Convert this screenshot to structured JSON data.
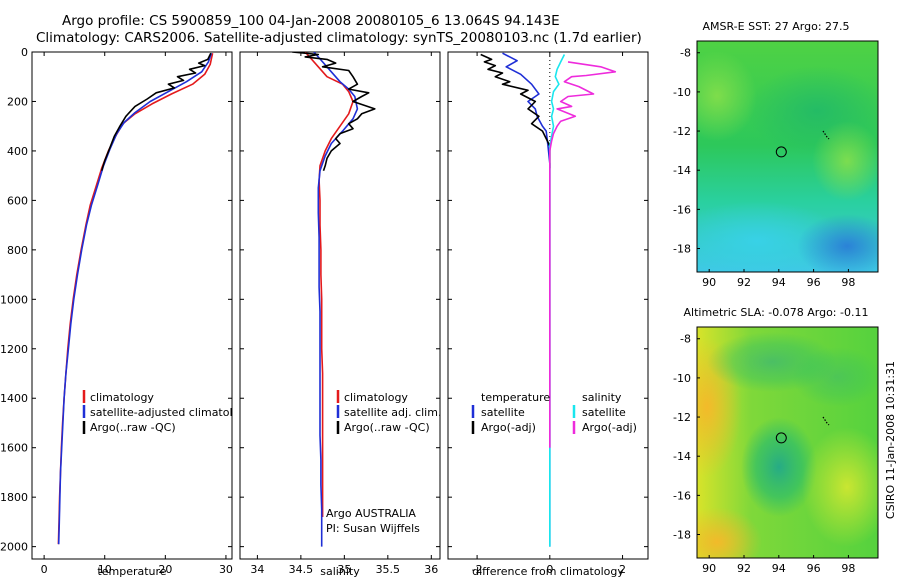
{
  "header": {
    "line1": "Argo profile: CS 5900859_100 04-Jan-2008 20080105_6 13.064S 94.143E",
    "line2": "Climatology: CARS2006. Satellite-adjusted climatology: synTS_20080103.nc (1.7d earlier)"
  },
  "colors": {
    "red": "#e41a1c",
    "blue": "#1f2fd6",
    "black": "#000000",
    "cyan": "#19e6ee",
    "magenta": "#ee2bdc"
  },
  "chart_data": [
    {
      "type": "line",
      "title": "",
      "xlabel": "temperature",
      "ylabel": "",
      "xlim": [
        -2,
        31
      ],
      "ylim": [
        2050,
        0
      ],
      "xticks": [
        0,
        10,
        20,
        30
      ],
      "yticks": [
        0,
        200,
        400,
        600,
        800,
        1000,
        1200,
        1400,
        1600,
        1800,
        2000
      ],
      "series": [
        {
          "name": "climatology",
          "color": "red",
          "points": [
            [
              27.8,
              5
            ],
            [
              27.4,
              50
            ],
            [
              26.5,
              90
            ],
            [
              24.5,
              130
            ],
            [
              21,
              170
            ],
            [
              17.8,
              210
            ],
            [
              15,
              250
            ],
            [
              13,
              290
            ],
            [
              11.8,
              340
            ],
            [
              10.6,
              400
            ],
            [
              9.5,
              470
            ],
            [
              8.5,
              550
            ],
            [
              7.6,
              620
            ],
            [
              6.9,
              700
            ],
            [
              6.1,
              800
            ],
            [
              5.4,
              900
            ],
            [
              4.8,
              1000
            ],
            [
              4.3,
              1100
            ],
            [
              3.9,
              1200
            ],
            [
              3.6,
              1300
            ],
            [
              3.3,
              1400
            ],
            [
              3.05,
              1500
            ],
            [
              2.85,
              1600
            ],
            [
              2.7,
              1700
            ],
            [
              2.55,
              1800
            ],
            [
              2.45,
              1900
            ],
            [
              2.35,
              1990
            ]
          ]
        },
        {
          "name": "satellite-adjusted climatology",
          "color": "blue",
          "points": [
            [
              27.6,
              5
            ],
            [
              27.1,
              40
            ],
            [
              26,
              80
            ],
            [
              23.5,
              120
            ],
            [
              20.5,
              160
            ],
            [
              17.5,
              200
            ],
            [
              15,
              245
            ],
            [
              13.2,
              285
            ],
            [
              12,
              330
            ],
            [
              10.9,
              390
            ],
            [
              9.8,
              460
            ],
            [
              8.8,
              540
            ],
            [
              7.8,
              620
            ],
            [
              7,
              700
            ],
            [
              6.2,
              800
            ],
            [
              5.5,
              900
            ],
            [
              4.9,
              1000
            ],
            [
              4.4,
              1100
            ],
            [
              4,
              1200
            ],
            [
              3.6,
              1300
            ],
            [
              3.3,
              1400
            ],
            [
              3.1,
              1500
            ],
            [
              2.9,
              1600
            ],
            [
              2.7,
              1700
            ],
            [
              2.6,
              1800
            ],
            [
              2.5,
              1900
            ],
            [
              2.4,
              1990
            ]
          ]
        },
        {
          "name": "Argo(..raw -QC)",
          "color": "black",
          "points": [
            [
              27.5,
              5
            ],
            [
              27,
              30
            ],
            [
              25.5,
              45
            ],
            [
              26.5,
              55
            ],
            [
              24,
              70
            ],
            [
              25,
              85
            ],
            [
              22,
              100
            ],
            [
              23,
              115
            ],
            [
              20.5,
              130
            ],
            [
              21.5,
              145
            ],
            [
              18.5,
              165
            ],
            [
              17,
              190
            ],
            [
              15,
              220
            ],
            [
              13.5,
              260
            ],
            [
              12.5,
              300
            ],
            [
              11.6,
              340
            ],
            [
              10.8,
              390
            ],
            [
              10,
              440
            ],
            [
              9.5,
              480
            ]
          ]
        }
      ],
      "legend": {
        "position": "bottom-right",
        "entries": [
          "climatology",
          "satellite-adjusted climatology",
          "Argo(..raw -QC)"
        ]
      }
    },
    {
      "type": "line",
      "title": "",
      "xlabel": "salinity",
      "ylabel": "",
      "xlim": [
        33.8,
        36.1
      ],
      "ylim": [
        2050,
        0
      ],
      "xticks": [
        34,
        34.5,
        35,
        35.5,
        36
      ],
      "series": [
        {
          "name": "climatology",
          "color": "red",
          "points": [
            [
              34.55,
              0
            ],
            [
              34.7,
              60
            ],
            [
              34.8,
              100
            ],
            [
              34.98,
              130
            ],
            [
              35.05,
              160
            ],
            [
              35.1,
              200
            ],
            [
              35.05,
              250
            ],
            [
              34.95,
              300
            ],
            [
              34.85,
              350
            ],
            [
              34.78,
              400
            ],
            [
              34.72,
              460
            ],
            [
              34.71,
              520
            ],
            [
              34.72,
              600
            ],
            [
              34.72,
              700
            ],
            [
              34.73,
              800
            ],
            [
              34.73,
              900
            ],
            [
              34.74,
              1000
            ],
            [
              34.74,
              1100
            ],
            [
              34.74,
              1200
            ],
            [
              34.75,
              1300
            ],
            [
              34.75,
              1400
            ],
            [
              34.75,
              1500
            ],
            [
              34.75,
              1600
            ],
            [
              34.75,
              1700
            ],
            [
              34.75,
              1800
            ],
            [
              34.75,
              1880
            ]
          ]
        },
        {
          "name": "satellite adj. clim.",
          "color": "blue",
          "points": [
            [
              34.65,
              0
            ],
            [
              34.75,
              40
            ],
            [
              34.85,
              80
            ],
            [
              34.95,
              120
            ],
            [
              35.05,
              150
            ],
            [
              35.12,
              180
            ],
            [
              35.15,
              230
            ],
            [
              35.1,
              270
            ],
            [
              34.98,
              320
            ],
            [
              34.85,
              370
            ],
            [
              34.78,
              420
            ],
            [
              34.72,
              480
            ],
            [
              34.7,
              550
            ],
            [
              34.7,
              650
            ],
            [
              34.71,
              750
            ],
            [
              34.71,
              850
            ],
            [
              34.71,
              950
            ],
            [
              34.72,
              1050
            ],
            [
              34.72,
              1150
            ],
            [
              34.72,
              1250
            ],
            [
              34.72,
              1350
            ],
            [
              34.72,
              1450
            ],
            [
              34.72,
              1550
            ],
            [
              34.73,
              1650
            ],
            [
              34.73,
              1750
            ],
            [
              34.74,
              1850
            ],
            [
              34.74,
              2000
            ]
          ]
        },
        {
          "name": "Argo(..raw -QC)",
          "color": "black",
          "points": [
            [
              34.4,
              0
            ],
            [
              34.7,
              10
            ],
            [
              34.55,
              20
            ],
            [
              34.8,
              30
            ],
            [
              34.9,
              45
            ],
            [
              34.75,
              60
            ],
            [
              35.05,
              75
            ],
            [
              35.1,
              100
            ],
            [
              35.15,
              130
            ],
            [
              35.05,
              150
            ],
            [
              35.28,
              165
            ],
            [
              35.2,
              180
            ],
            [
              35.1,
              200
            ],
            [
              35.35,
              230
            ],
            [
              35.2,
              250
            ],
            [
              35.15,
              270
            ],
            [
              35.05,
              290
            ],
            [
              35.1,
              310
            ],
            [
              34.95,
              330
            ],
            [
              34.9,
              350
            ],
            [
              34.95,
              370
            ],
            [
              34.85,
              400
            ],
            [
              34.8,
              430
            ],
            [
              34.78,
              460
            ],
            [
              34.76,
              480
            ]
          ]
        }
      ],
      "legend": {
        "position": "bottom-right",
        "entries": [
          "climatology",
          "satellite adj. clim.",
          "Argo(..raw -QC)"
        ]
      },
      "annotation": [
        "Argo AUSTRALIA",
        "PI: Susan Wijffels"
      ]
    },
    {
      "type": "line",
      "title": "",
      "xlabel": "difference from climatology",
      "ylabel": "",
      "xlim": [
        -2.8,
        2.7
      ],
      "ylim": [
        2050,
        0
      ],
      "xticks": [
        -2,
        0,
        2
      ],
      "series": [
        {
          "name": "temperature satellite",
          "color": "blue",
          "points": [
            [
              -1.3,
              5
            ],
            [
              -0.9,
              35
            ],
            [
              -1.2,
              60
            ],
            [
              -0.8,
              90
            ],
            [
              -0.5,
              130
            ],
            [
              -0.3,
              170
            ],
            [
              -0.6,
              200
            ],
            [
              -0.4,
              230
            ],
            [
              -0.35,
              260
            ],
            [
              -0.2,
              300
            ],
            [
              -0.1,
              320
            ],
            [
              -0.05,
              380
            ],
            [
              0,
              450
            ],
            [
              0,
              600
            ],
            [
              0,
              800
            ],
            [
              0,
              1000
            ],
            [
              0,
              1200
            ],
            [
              0,
              1400
            ],
            [
              0,
              1600
            ],
            [
              0,
              1800
            ],
            [
              0,
              2000
            ]
          ]
        },
        {
          "name": "temperature Argo(-adj)",
          "color": "black",
          "points": [
            [
              -1.9,
              10
            ],
            [
              -1.6,
              30
            ],
            [
              -1.8,
              40
            ],
            [
              -1.5,
              55
            ],
            [
              -1.7,
              70
            ],
            [
              -1.3,
              85
            ],
            [
              -1.5,
              100
            ],
            [
              -1.1,
              120
            ],
            [
              -1.3,
              130
            ],
            [
              -0.6,
              155
            ],
            [
              -0.8,
              170
            ],
            [
              -0.4,
              200
            ],
            [
              -0.6,
              230
            ],
            [
              -0.3,
              260
            ],
            [
              -0.5,
              290
            ],
            [
              -0.2,
              320
            ],
            [
              -0.1,
              350
            ],
            [
              0,
              380
            ],
            [
              0,
              420
            ],
            [
              0,
              470
            ]
          ]
        },
        {
          "name": "salinity satellite",
          "color": "cyan",
          "points": [
            [
              0.4,
              10
            ],
            [
              0.3,
              40
            ],
            [
              0.2,
              70
            ],
            [
              0.15,
              100
            ],
            [
              0.25,
              130
            ],
            [
              0.1,
              160
            ],
            [
              0.05,
              200
            ],
            [
              0.1,
              230
            ],
            [
              0.05,
              260
            ],
            [
              0.1,
              300
            ],
            [
              0.05,
              340
            ],
            [
              0,
              380
            ],
            [
              0,
              450
            ],
            [
              0,
              600
            ],
            [
              0,
              800
            ],
            [
              0,
              1000
            ],
            [
              0,
              1200
            ],
            [
              0,
              1400
            ],
            [
              0,
              1600
            ],
            [
              0,
              1800
            ],
            [
              0,
              2000
            ]
          ]
        },
        {
          "name": "salinity Argo(-adj)",
          "color": "magenta",
          "points": [
            [
              0.5,
              40
            ],
            [
              1.4,
              60
            ],
            [
              1.8,
              80
            ],
            [
              1.0,
              95
            ],
            [
              0.6,
              100
            ],
            [
              0.4,
              120
            ],
            [
              0.8,
              140
            ],
            [
              1.2,
              170
            ],
            [
              0.5,
              180
            ],
            [
              0.3,
              200
            ],
            [
              0.6,
              220
            ],
            [
              0.2,
              230
            ],
            [
              0.7,
              260
            ],
            [
              0.3,
              280
            ],
            [
              0.2,
              300
            ],
            [
              0.1,
              330
            ],
            [
              0.05,
              360
            ],
            [
              0,
              400
            ],
            [
              0,
              1000
            ],
            [
              0,
              1600
            ]
          ]
        }
      ],
      "legend": {
        "position": "bottom",
        "temperature_heading": "temperature",
        "salinity_heading": "salinity",
        "entries": [
          "satellite",
          "Argo(-adj)",
          "satellite",
          "Argo(-adj)"
        ]
      }
    },
    {
      "type": "heatmap",
      "title": "AMSR-E SST: 27 Argo: 27.5",
      "xlim": [
        89.3,
        99.7
      ],
      "ylim": [
        -19.2,
        -7.4
      ],
      "xticks": [
        90,
        92,
        94,
        96,
        98
      ],
      "yticks": [
        -8,
        -10,
        -12,
        -14,
        -16,
        -18
      ],
      "marker": [
        94.143,
        -13.064
      ]
    },
    {
      "type": "heatmap",
      "title": "Altimetric SLA: -0.078 Argo: -0.11",
      "xlim": [
        89.3,
        99.7
      ],
      "ylim": [
        -19.2,
        -7.4
      ],
      "xticks": [
        90,
        92,
        94,
        96,
        98
      ],
      "yticks": [
        -8,
        -10,
        -12,
        -14,
        -16,
        -18
      ],
      "marker": [
        94.143,
        -13.064
      ]
    }
  ],
  "footer": {
    "credit": "CSIRO 11-Jan-2008 10:31:31"
  }
}
